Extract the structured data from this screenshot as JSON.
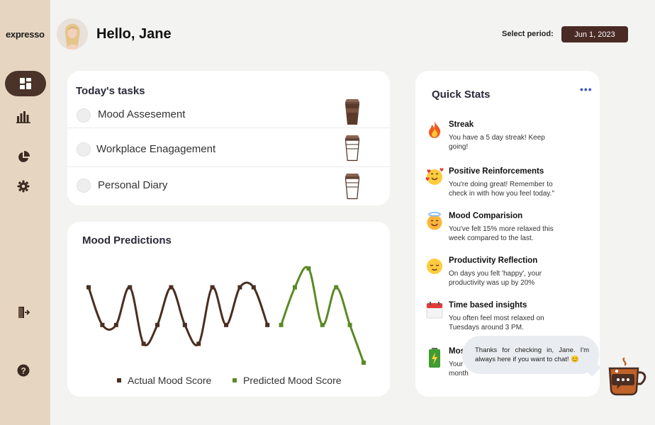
{
  "app": {
    "name": "expresso"
  },
  "sidebar": {
    "items": [
      {
        "name": "dashboard",
        "icon": "grid-icon",
        "active": true
      },
      {
        "name": "analytics",
        "icon": "bar-chart-icon"
      },
      {
        "name": "reports",
        "icon": "pie-chart-icon"
      },
      {
        "name": "settings",
        "icon": "gear-icon"
      },
      {
        "name": "logout",
        "icon": "logout-door-icon"
      },
      {
        "name": "help",
        "icon": "help-icon"
      }
    ]
  },
  "header": {
    "greeting": "Hello, Jane",
    "period_label": "Select period:",
    "period_value": "Jun 1, 2023"
  },
  "tasks": {
    "title": "Today's tasks",
    "items": [
      {
        "label": "Mood Assesement",
        "cup": "filled-coffee-cup-icon"
      },
      {
        "label": "Workplace Enagagement",
        "cup": "empty-coffee-cup-icon"
      },
      {
        "label": "Personal Diary",
        "cup": "empty-coffee-cup-icon"
      }
    ]
  },
  "mood": {
    "title": "Mood Predictions",
    "legend": {
      "actual": "Actual Mood Score",
      "predicted": "Predicted Mood Score"
    }
  },
  "chart_data": {
    "type": "line",
    "title": "Mood Predictions",
    "series": [
      {
        "name": "Actual Mood Score",
        "color": "#4a2e21",
        "x": [
          0,
          1,
          2,
          3,
          4,
          5,
          6,
          7,
          8,
          9,
          10,
          11,
          12,
          13
        ],
        "values": [
          7.5,
          2.5,
          2.5,
          7.5,
          0,
          2.5,
          7.5,
          2.5,
          0,
          7.5,
          2.5,
          7.5,
          7.5,
          2.5
        ]
      },
      {
        "name": "Predicted Mood Score",
        "color": "#5a8a24",
        "x": [
          14,
          15,
          16,
          17,
          18,
          19,
          20
        ],
        "values": [
          2.5,
          7.5,
          10,
          2.5,
          7.5,
          2.5,
          -2.5
        ]
      }
    ],
    "ylim": [
      -2.5,
      10
    ],
    "grid": false,
    "legend_position": "bottom"
  },
  "stats": {
    "title": "Quick Stats",
    "more_icon": "more-dots-icon",
    "items": [
      {
        "icon": "fire-emoji-icon",
        "title": "Streak",
        "text": "You have a 5 day streak! Keep going!"
      },
      {
        "icon": "hearts-face-emoji-icon",
        "title": "Positive Reinforcements",
        "text": "You're doing great! Remember to check in with how you feel today.\""
      },
      {
        "icon": "halo-face-emoji-icon",
        "title": "Mood Comparision",
        "text": "You've felt 15% more relaxed this week compared to the last."
      },
      {
        "icon": "relieved-face-emoji-icon",
        "title": "Productivity Reflection",
        "text": "On days you felt 'happy', your productivity was up by 20%"
      },
      {
        "icon": "calendar-emoji-icon",
        "title": "Time based insights",
        "text": "You often feel most relaxed on Tuesdays around 3 PM."
      },
      {
        "icon": "battery-emoji-icon",
        "title": "Mos",
        "text": "Your month"
      }
    ]
  },
  "chat": {
    "message": "Thanks for checking in, Jane. I'm always here if you want to chat! 😊",
    "icon": "chat-coffee-cup-icon"
  },
  "colors": {
    "sidebar": "#e6d6c1",
    "accent": "#4a2a25",
    "actual_line": "#4a2e21",
    "predicted_line": "#5a8a24"
  }
}
